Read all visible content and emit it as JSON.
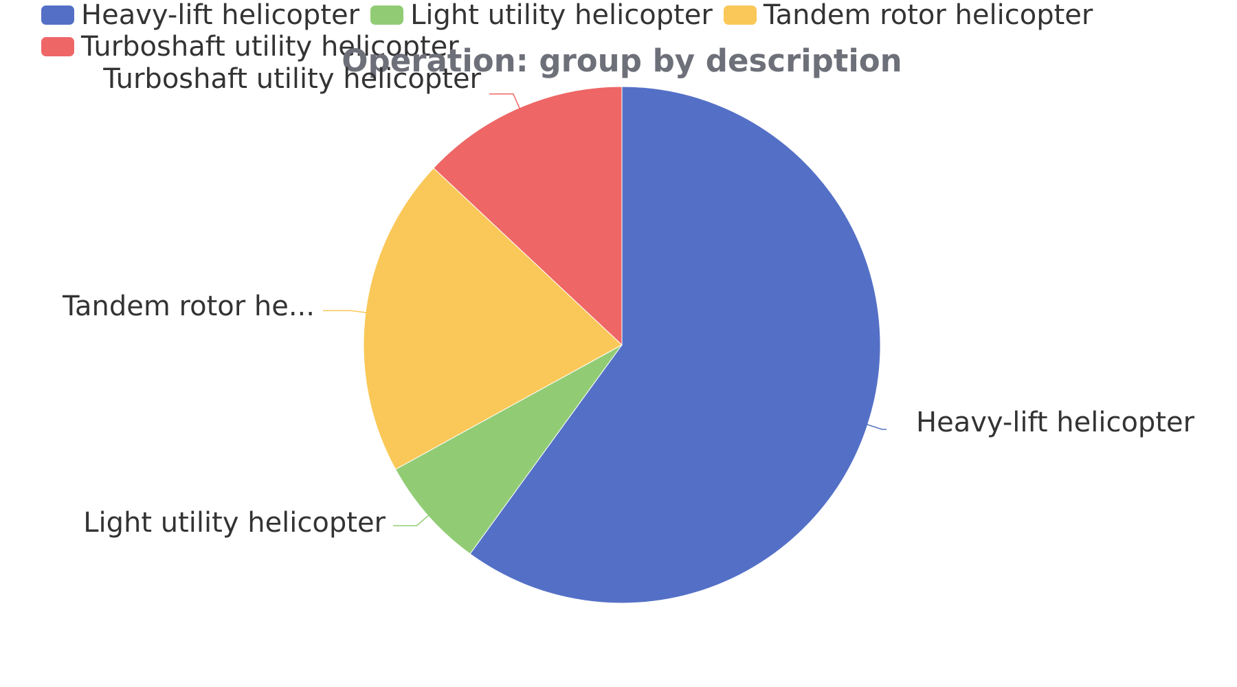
{
  "chart_data": {
    "type": "pie",
    "title": "Operation: group by description",
    "legend_position": "top-left",
    "categories": [
      "Heavy-lift helicopter",
      "Light utility helicopter",
      "Tandem rotor helicopter",
      "Turboshaft utility helicopter"
    ],
    "slice_labels": [
      "Heavy-lift helicopter",
      "Light utility helicopter",
      "Tandem rotor he...",
      "Turboshaft utility helicopter"
    ],
    "values": [
      60,
      7,
      20,
      13
    ],
    "colors": [
      "#5470C6",
      "#91CC75",
      "#FAC858",
      "#EE6666"
    ],
    "start_angle_deg": 90,
    "direction": "clockwise"
  }
}
